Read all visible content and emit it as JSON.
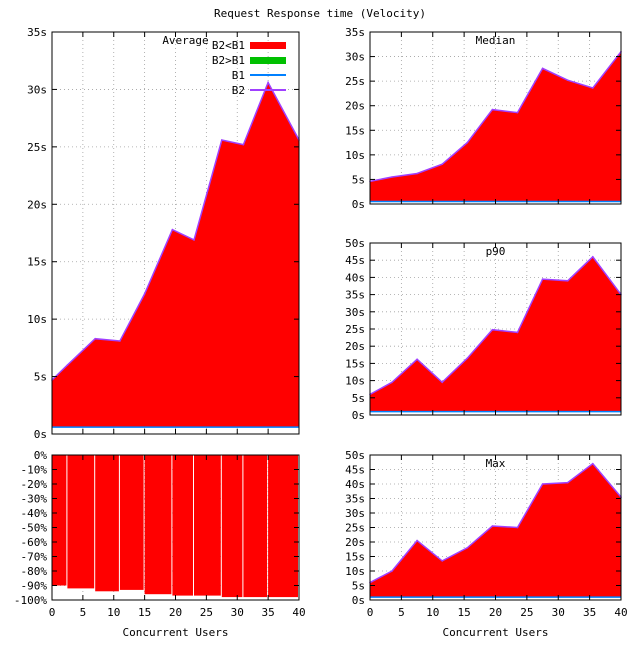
{
  "figure_title": "Request Response time (Velocity)",
  "colors": {
    "b2_lt_b1": "#ff0000",
    "b2_gt_b1": "#00c000",
    "b1": "#0080ff",
    "b2": "#a040ff",
    "grid": "#a0a0a0",
    "axis": "#000000"
  },
  "chart_data": [
    {
      "id": "average",
      "type": "area",
      "title": "Average",
      "xlabel": "",
      "ylabel": "",
      "xlim": [
        0,
        40
      ],
      "ylim": [
        0,
        35
      ],
      "unit": "s",
      "grid": true,
      "legend": "top-right",
      "legend_entries": [
        "B2<B1",
        "B2>B1",
        "B1",
        "B2"
      ],
      "xticks": [
        0,
        5,
        10,
        15,
        20,
        25,
        30,
        35,
        40
      ],
      "yticks": [
        0,
        5,
        10,
        15,
        20,
        25,
        30,
        35
      ],
      "x": [
        0,
        2.5,
        7,
        11,
        15,
        19.5,
        23,
        27.5,
        31,
        35,
        40
      ],
      "series": [
        {
          "name": "B1",
          "values": [
            4.7,
            6.0,
            8.3,
            8.1,
            12.2,
            17.8,
            16.9,
            25.6,
            25.2,
            30.6,
            25.6
          ]
        },
        {
          "name": "B2",
          "values": [
            0.6,
            0.6,
            0.6,
            0.6,
            0.6,
            0.6,
            0.6,
            0.6,
            0.6,
            0.6,
            0.6
          ]
        }
      ]
    },
    {
      "id": "median",
      "type": "area",
      "title": "Median",
      "xlim": [
        0,
        40
      ],
      "ylim": [
        0,
        35
      ],
      "unit": "s",
      "grid": true,
      "xticks": [
        0,
        5,
        10,
        15,
        20,
        25,
        30,
        35,
        40
      ],
      "yticks": [
        0,
        5,
        10,
        15,
        20,
        25,
        30,
        35
      ],
      "x": [
        0,
        3.5,
        7.5,
        11.5,
        15.5,
        19.5,
        23.5,
        27.5,
        31.5,
        35.5,
        40
      ],
      "series": [
        {
          "name": "B1",
          "values": [
            4.6,
            5.5,
            6.2,
            8.1,
            12.5,
            19.2,
            18.6,
            27.6,
            25.2,
            23.6,
            31.0
          ]
        },
        {
          "name": "B2",
          "values": [
            0.5,
            0.5,
            0.5,
            0.5,
            0.5,
            0.5,
            0.5,
            0.5,
            0.5,
            0.5,
            0.5
          ]
        }
      ]
    },
    {
      "id": "p90",
      "type": "area",
      "title": "p90",
      "xlim": [
        0,
        40
      ],
      "ylim": [
        0,
        50
      ],
      "unit": "s",
      "grid": true,
      "xticks": [
        0,
        5,
        10,
        15,
        20,
        25,
        30,
        35,
        40
      ],
      "yticks": [
        0,
        5,
        10,
        15,
        20,
        25,
        30,
        35,
        40,
        45,
        50
      ],
      "x": [
        0,
        3.5,
        7.5,
        11.5,
        15.5,
        19.5,
        23.5,
        27.5,
        31.5,
        35.5,
        40
      ],
      "series": [
        {
          "name": "B1",
          "values": [
            6.0,
            9.5,
            16.2,
            9.5,
            16.5,
            24.8,
            24.0,
            39.5,
            39.0,
            46.0,
            35.0
          ]
        },
        {
          "name": "B2",
          "values": [
            1.0,
            1.0,
            1.0,
            1.0,
            1.0,
            1.0,
            1.0,
            1.0,
            1.0,
            1.0,
            1.0
          ]
        }
      ]
    },
    {
      "id": "max",
      "type": "area",
      "title": "Max",
      "xlim": [
        0,
        40
      ],
      "ylim": [
        0,
        50
      ],
      "unit": "s",
      "grid": true,
      "xlabel": "Concurrent Users",
      "xticks": [
        0,
        5,
        10,
        15,
        20,
        25,
        30,
        35,
        40
      ],
      "yticks": [
        0,
        5,
        10,
        15,
        20,
        25,
        30,
        35,
        40,
        45,
        50
      ],
      "x": [
        0,
        3.5,
        7.5,
        11.5,
        15.5,
        19.5,
        23.5,
        27.5,
        31.5,
        35.5,
        40
      ],
      "series": [
        {
          "name": "B1",
          "values": [
            6.0,
            10.0,
            20.5,
            13.5,
            18.0,
            25.5,
            25.0,
            40.0,
            40.5,
            47.0,
            35.5
          ]
        },
        {
          "name": "B2",
          "values": [
            1.0,
            1.0,
            1.0,
            1.0,
            1.0,
            1.0,
            1.0,
            1.0,
            1.0,
            1.0,
            1.0
          ]
        }
      ]
    },
    {
      "id": "diff",
      "type": "bar",
      "title": "",
      "xlabel": "Concurrent Users",
      "xlim": [
        0,
        40
      ],
      "ylim": [
        -100,
        0
      ],
      "unit": "%",
      "grid": true,
      "xticks": [
        0,
        5,
        10,
        15,
        20,
        25,
        30,
        35,
        40
      ],
      "yticks": [
        0,
        -10,
        -20,
        -30,
        -40,
        -50,
        -60,
        -70,
        -80,
        -90,
        -100
      ],
      "x": [
        0,
        2.5,
        7,
        11,
        15,
        19.5,
        23,
        27.5,
        31,
        35,
        40
      ],
      "values": [
        -90,
        -92,
        -94,
        -93,
        -96,
        -97,
        -97,
        -98,
        -98,
        -98,
        -98
      ]
    }
  ]
}
